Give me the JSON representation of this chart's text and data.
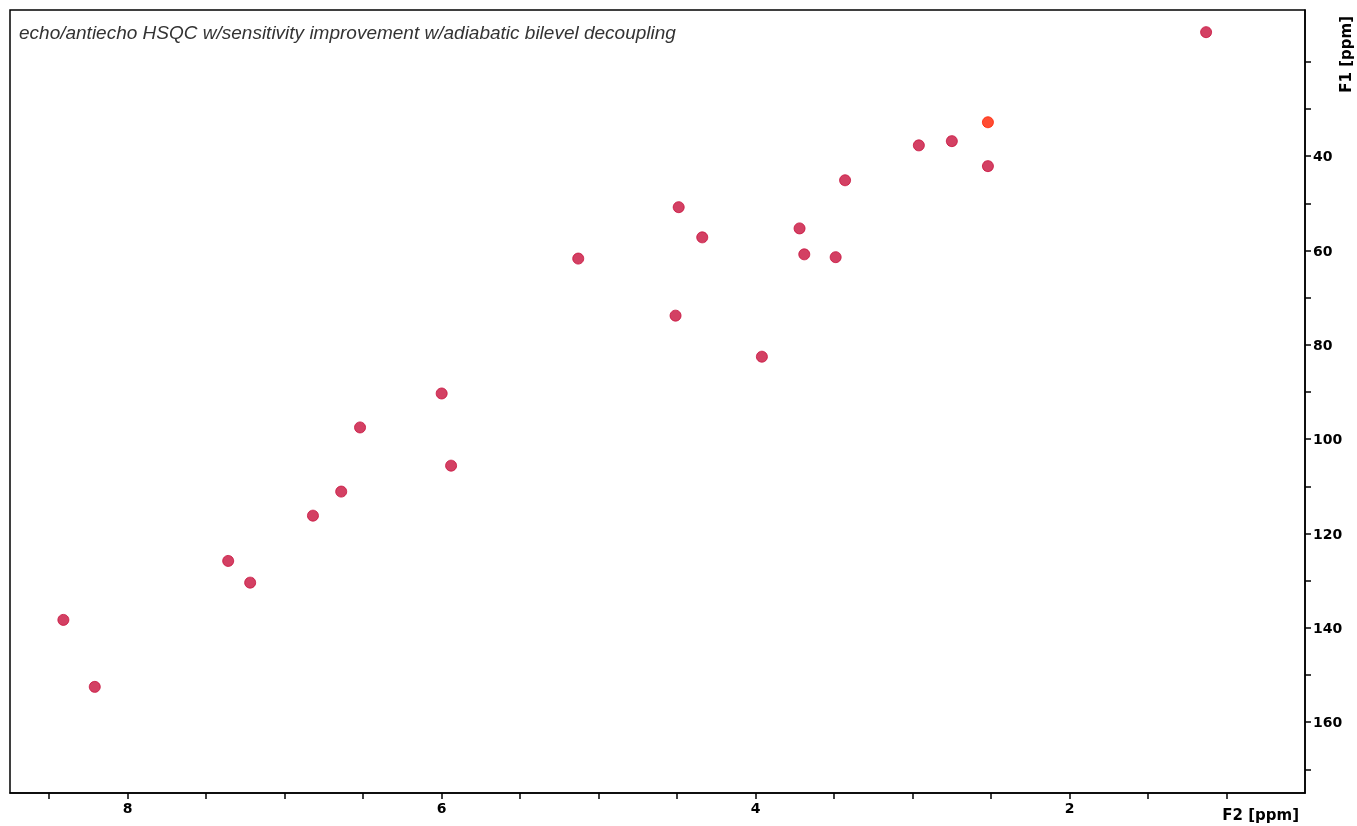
{
  "chart_data": {
    "type": "scatter",
    "title": "echo/antiecho HSQC w/sensitivity improvement w/adiabatic bilevel decoupling",
    "xlabel": "F2 [ppm]",
    "ylabel": "F1 [ppm]",
    "xlim": [
      8.75,
      0.5
    ],
    "ylim": [
      175,
      9
    ],
    "xticks": [
      {
        "value": 8.5,
        "label": null
      },
      8,
      {
        "value": 7.5,
        "label": null
      },
      {
        "value": 7,
        "label": null
      },
      {
        "value": 6.5,
        "label": null
      },
      6,
      {
        "value": 5.5,
        "label": null
      },
      {
        "value": 5,
        "label": null
      },
      {
        "value": 4.5,
        "label": null
      },
      4,
      {
        "value": 3.5,
        "label": null
      },
      {
        "value": 3,
        "label": null
      },
      {
        "value": 2.5,
        "label": null
      },
      2,
      {
        "value": 1.5,
        "label": null
      },
      {
        "value": 1,
        "label": null
      }
    ],
    "yticks": [
      {
        "value": 20,
        "label": null
      },
      {
        "value": 30,
        "label": null
      },
      40,
      {
        "value": 50,
        "label": null
      },
      60,
      {
        "value": 70,
        "label": null
      },
      80,
      {
        "value": 90,
        "label": null
      },
      100,
      {
        "value": 110,
        "label": null
      },
      120,
      {
        "value": 130,
        "label": null
      },
      140,
      {
        "value": 150,
        "label": null
      },
      160,
      {
        "value": 170,
        "label": null
      }
    ],
    "grid": false,
    "marker": "circle",
    "series": [
      {
        "color": "#c8103c",
        "x": [
          8.41,
          8.21,
          7.36,
          7.22,
          6.82,
          6.64,
          6.52,
          6.0,
          5.94,
          5.13,
          4.49,
          4.51,
          4.34,
          3.96,
          3.72,
          3.69,
          3.49,
          3.43,
          2.96,
          2.75,
          2.52,
          1.13
        ],
        "values": [
          138.3,
          152.5,
          125.8,
          130.4,
          116.2,
          111.1,
          97.5,
          90.3,
          105.6,
          61.7,
          50.8,
          73.8,
          57.2,
          82.5,
          55.3,
          60.8,
          61.4,
          45.1,
          37.7,
          36.8,
          42.1,
          13.7
        ]
      },
      {
        "color": "#ff2000",
        "x": [
          2.52
        ],
        "values": [
          32.8
        ]
      }
    ]
  }
}
